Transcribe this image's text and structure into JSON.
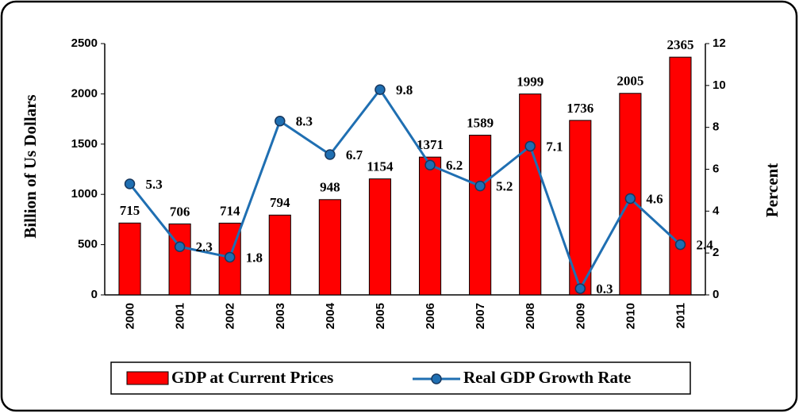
{
  "chart_data": {
    "type": "bar-line",
    "categories": [
      "2000",
      "2001",
      "2002",
      "2003",
      "2004",
      "2005",
      "2006",
      "2007",
      "2008",
      "2009",
      "2010",
      "2011"
    ],
    "series": [
      {
        "name": "GDP at Current Prices",
        "color": "#ff0000",
        "values": [
          715,
          706,
          714,
          794,
          948,
          1154,
          1371,
          1589,
          1999,
          1736,
          2005,
          2365
        ]
      },
      {
        "name": "Real GDP Growth Rate",
        "color": "#1f6fb2",
        "axis": "y2",
        "values": [
          5.3,
          2.3,
          1.8,
          8.3,
          6.7,
          9.8,
          6.2,
          5.2,
          7.1,
          0.3,
          4.6,
          2.4
        ]
      }
    ],
    "ylabel": "Billion of Us Dollars",
    "y2label": "Percent",
    "ylim": [
      0,
      2500
    ],
    "yticks": [
      0,
      500,
      1000,
      1500,
      2000,
      2500
    ],
    "y2lim": [
      0,
      12
    ],
    "y2ticks": [
      0,
      2,
      4,
      6,
      8,
      10,
      12
    ],
    "legend": "bottom"
  }
}
